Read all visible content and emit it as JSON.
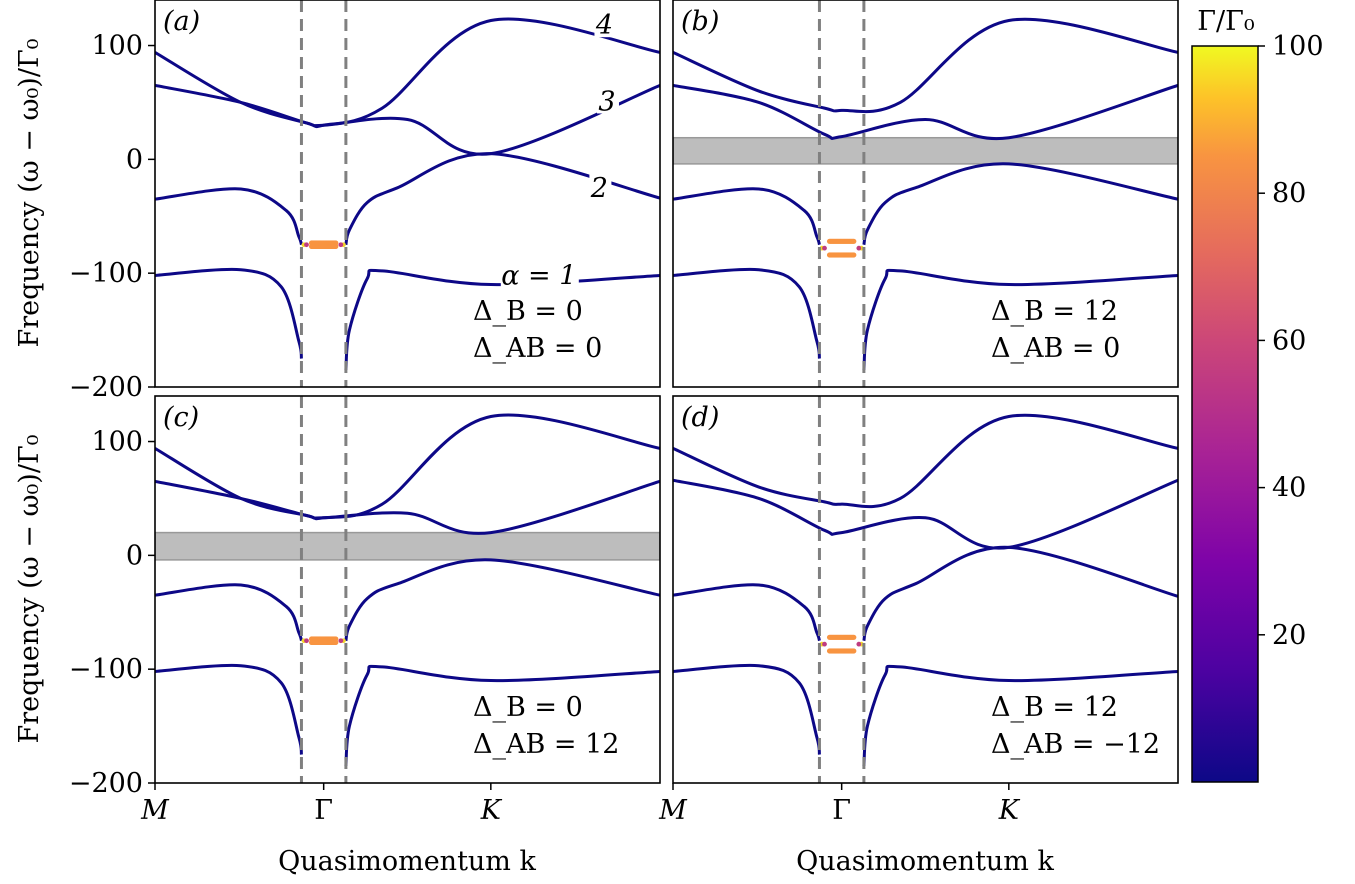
{
  "chart_data": {
    "type": "line",
    "y_axis_label": "Frequency (ω − ω₀)/Γ₀",
    "x_axis_label": "Quasimomentum k",
    "x_ticks": [
      "M",
      "Γ",
      "K"
    ],
    "y_ticks": [
      "100",
      "0",
      "−100",
      "−200"
    ],
    "ylim": [
      -200,
      140
    ],
    "colorbar": {
      "label": "Γ/Γ₀",
      "ticks": [
        "100",
        "80",
        "60",
        "40",
        "20"
      ],
      "range": [
        0,
        100
      ],
      "colormap": "plasma"
    },
    "band_labels": [
      "4",
      "3",
      "2",
      "α = 1"
    ],
    "panels": [
      {
        "tag": "(a)",
        "param1": "Δ_B = 0",
        "param2": "Δ_AB = 0",
        "gap": null,
        "bands": [
          {
            "name": "1",
            "values": [
              -102,
              -97,
              -101,
              -110,
              -107,
              -102
            ]
          },
          {
            "name": "2",
            "values": [
              -35,
              -26,
              -75,
              -22,
              5,
              -34
            ]
          },
          {
            "name": "3",
            "values": [
              65,
              50,
              30,
              35,
              5,
              65
            ]
          },
          {
            "name": "4",
            "values": [
              94,
              50,
              30,
              45,
              122,
              94
            ]
          }
        ]
      },
      {
        "tag": "(b)",
        "param1": "Δ_B = 12",
        "param2": "Δ_AB = 0",
        "gap": [
          -4,
          19
        ],
        "bands": [
          {
            "name": "1",
            "values": [
              -102,
              -97,
              -101,
              -110,
              -107,
              -102
            ]
          },
          {
            "name": "2",
            "values": [
              -35,
              -26,
              -75,
              -22,
              -4,
              -35
            ]
          },
          {
            "name": "3",
            "values": [
              65,
              50,
              20,
              35,
              19,
              65
            ]
          },
          {
            "name": "4",
            "values": [
              94,
              60,
              43,
              50,
              122,
              94
            ]
          }
        ]
      },
      {
        "tag": "(c)",
        "param1": "Δ_B = 0",
        "param2": "Δ_AB = 12",
        "gap": [
          -4,
          20
        ],
        "bands": [
          {
            "name": "1",
            "values": [
              -102,
              -97,
              -101,
              -110,
              -107,
              -102
            ]
          },
          {
            "name": "2",
            "values": [
              -35,
              -26,
              -75,
              -22,
              -4,
              -35
            ]
          },
          {
            "name": "3",
            "values": [
              65,
              50,
              33,
              37,
              20,
              65
            ]
          },
          {
            "name": "4",
            "values": [
              94,
              50,
              33,
              45,
              122,
              94
            ]
          }
        ]
      },
      {
        "tag": "(d)",
        "param1": "Δ_B = 12",
        "param2": "Δ_AB = −12",
        "gap": null,
        "bands": [
          {
            "name": "1",
            "values": [
              -102,
              -97,
              -101,
              -110,
              -107,
              -102
            ]
          },
          {
            "name": "2",
            "values": [
              -35,
              -26,
              -75,
              -22,
              7,
              -36
            ]
          },
          {
            "name": "3",
            "values": [
              66,
              50,
              20,
              33,
              7,
              66
            ]
          },
          {
            "name": "4",
            "values": [
              94,
              60,
              45,
              50,
              122,
              94
            ]
          }
        ]
      }
    ]
  }
}
